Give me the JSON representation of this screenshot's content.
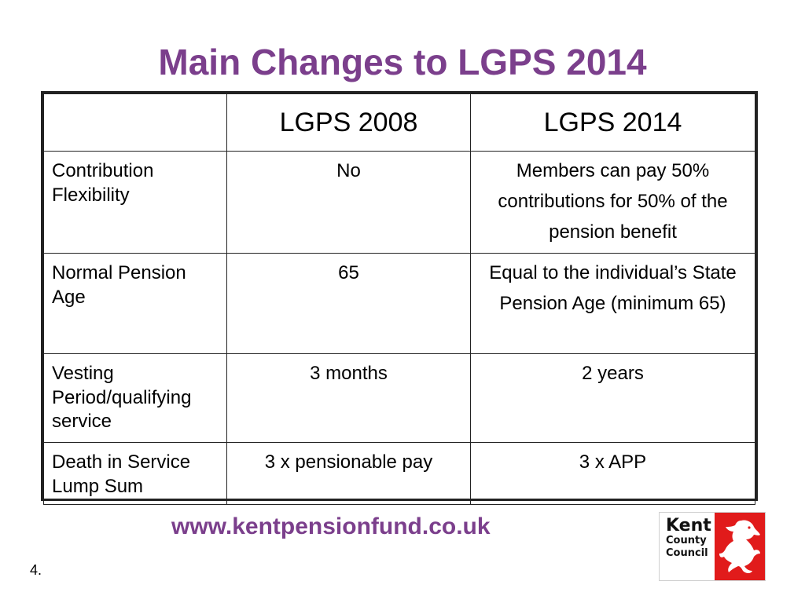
{
  "slide": {
    "title": "Main Changes to LGPS 2014",
    "url": "www.kentpensionfund.co.uk",
    "page_number": "4."
  },
  "table": {
    "headers": [
      "",
      "LGPS 2008",
      "LGPS 2014"
    ],
    "rows": [
      [
        "Contribution Flexibility",
        "No",
        "Members can pay 50% contributions for 50% of the pension benefit"
      ],
      [
        "Normal Pension Age",
        "65",
        "Equal to the individual’s State Pension Age (minimum 65)"
      ],
      [
        "Vesting Period/qualifying service",
        "3 months",
        "2 years"
      ],
      [
        "Death in Service Lump Sum",
        "3 x pensionable pay",
        "3 x APP"
      ]
    ]
  },
  "logo": {
    "line1": "Kent",
    "line2": "County",
    "line3": "Council",
    "icon": "white-horse-icon",
    "brand_color": "#e11b1b"
  },
  "colors": {
    "title": "#7b3f8c",
    "url": "#7b3f8c"
  }
}
